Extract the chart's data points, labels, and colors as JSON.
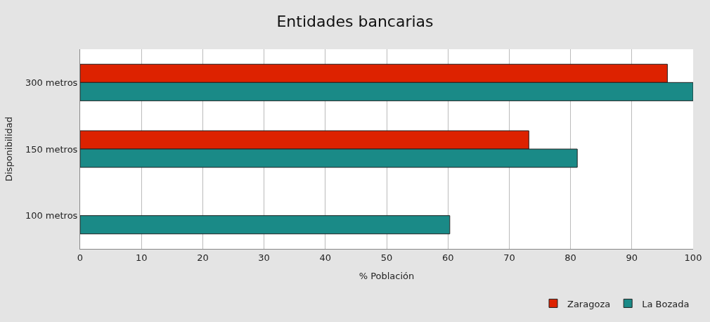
{
  "chart_data": {
    "type": "bar",
    "orientation": "horizontal",
    "title": "Entidades bancarias",
    "xlabel": "% Población",
    "ylabel": "Disponibilidad",
    "categories": [
      "300 metros",
      "150 metros",
      "100 metros"
    ],
    "series": [
      {
        "name": "Zaragoza",
        "color": "#dd2200",
        "values": [
          95.8,
          73.2,
          null
        ]
      },
      {
        "name": "La Bozada",
        "color": "#1a8a87",
        "values": [
          100,
          81.1,
          60.3
        ]
      }
    ],
    "xlim": [
      0,
      100
    ],
    "xticks": [
      0,
      10,
      20,
      30,
      40,
      50,
      60,
      70,
      80,
      90,
      100
    ],
    "grid": "x",
    "legend": "bottom right"
  }
}
